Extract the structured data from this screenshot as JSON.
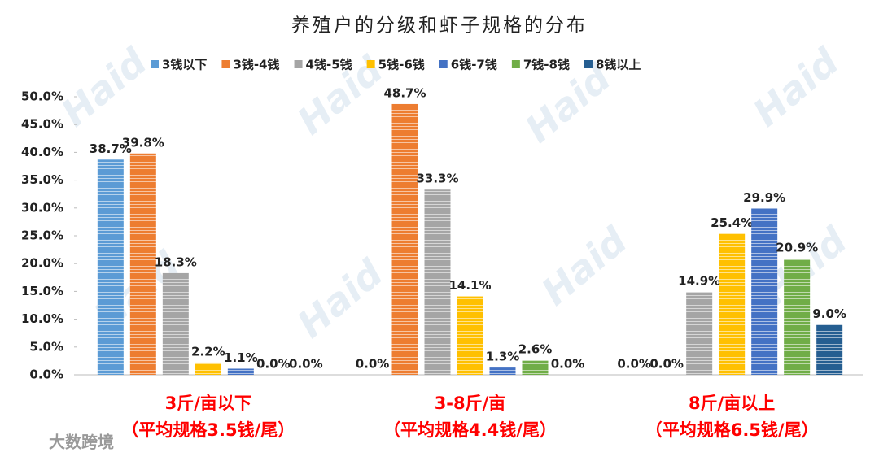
{
  "chart_data": {
    "type": "bar",
    "title": "养殖户的分级和虾子规格的分布",
    "watermark": "大数跨境",
    "watermark_logo": "Haid",
    "categories": [
      [
        "3斤/亩以下",
        "（平均规格3.5钱/尾）"
      ],
      [
        "3-8斤/亩",
        "（平均规格4.4钱/尾）"
      ],
      [
        "8斤/亩以上",
        "（平均规格6.5钱/尾）"
      ]
    ],
    "series": [
      {
        "name": "3钱以下",
        "color": "#5b9bd5",
        "values": [
          38.7,
          0.0,
          0.0
        ],
        "value_labels": [
          "38.7%",
          "0.0%",
          "0.0%"
        ]
      },
      {
        "name": "3钱-4钱",
        "color": "#ed7d31",
        "values": [
          39.8,
          48.7,
          0.0
        ],
        "value_labels": [
          "39.8%",
          "48.7%",
          "0.0%"
        ]
      },
      {
        "name": "4钱-5钱",
        "color": "#a5a5a5",
        "values": [
          18.3,
          33.3,
          14.9
        ],
        "value_labels": [
          "18.3%",
          "33.3%",
          "14.9%"
        ]
      },
      {
        "name": "5钱-6钱",
        "color": "#ffc000",
        "values": [
          2.2,
          14.1,
          25.4
        ],
        "value_labels": [
          "2.2%",
          "14.1%",
          "25.4%"
        ]
      },
      {
        "name": "6钱-7钱",
        "color": "#4472c4",
        "values": [
          1.1,
          1.3,
          29.9
        ],
        "value_labels": [
          "1.1%",
          "1.3%",
          "29.9%"
        ]
      },
      {
        "name": "7钱-8钱",
        "color": "#70ad47",
        "values": [
          0.0,
          2.6,
          20.9
        ],
        "value_labels": [
          "0.0%",
          "2.6%",
          "20.9%"
        ]
      },
      {
        "name": "8钱以上",
        "color": "#255e91",
        "values": [
          0.0,
          0.0,
          9.0
        ],
        "value_labels": [
          "0.0%",
          "0.0%",
          "9.0%"
        ]
      }
    ],
    "ylim": [
      0,
      50
    ],
    "yticks": [
      {
        "value": 0,
        "label": "0.0%"
      },
      {
        "value": 5,
        "label": "5.0%"
      },
      {
        "value": 10,
        "label": "10.0%"
      },
      {
        "value": 15,
        "label": "15.0%"
      },
      {
        "value": 20,
        "label": "20.0%"
      },
      {
        "value": 25,
        "label": "25.0%"
      },
      {
        "value": 30,
        "label": "30.0%"
      },
      {
        "value": 35,
        "label": "35.0%"
      },
      {
        "value": 40,
        "label": "40.0%"
      },
      {
        "value": 45,
        "label": "45.0%"
      },
      {
        "value": 50,
        "label": "50.0%"
      }
    ],
    "legend": "top",
    "grid": false
  }
}
